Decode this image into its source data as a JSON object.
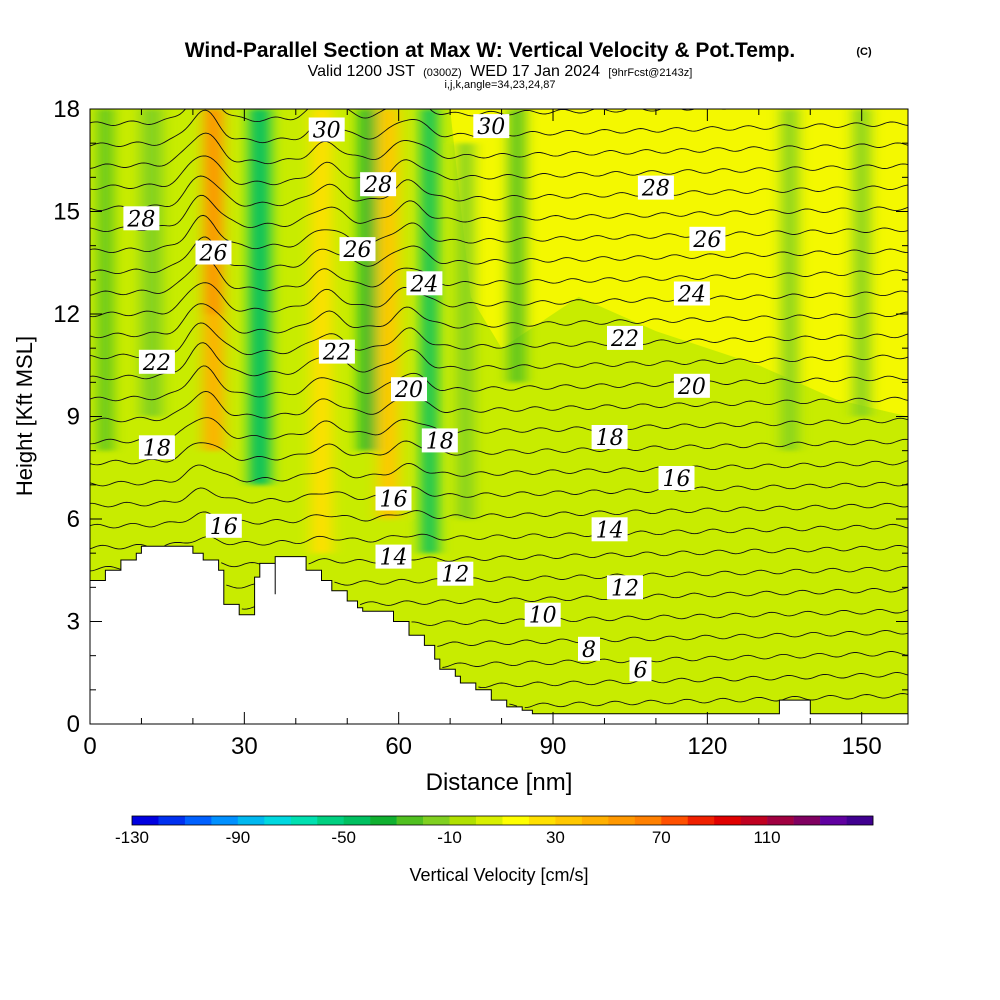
{
  "chart_data": {
    "type": "heatmap",
    "title": "Wind-Parallel Section at Max W: Vertical Velocity & Pot.Temp.",
    "title_mark": "(C)",
    "subtitle": {
      "main_a": "Valid 1200 JST",
      "utc": "(0300Z)",
      "main_b": "WED 17 Jan 2024",
      "fcst": "[9hrFcst@2143z]"
    },
    "subtitle2": "i,j,k,angle=34,23,24,87",
    "xlabel": "Distance [nm]",
    "ylabel": "Height [Kft MSL]",
    "xlim": [
      0,
      159
    ],
    "ylim": [
      0,
      18
    ],
    "xticks": [
      0,
      30,
      60,
      90,
      120,
      150
    ],
    "yticks": [
      0,
      3,
      6,
      9,
      12,
      15,
      18
    ],
    "colorbar": {
      "label": "Vertical Velocity [cm/s]",
      "tick_labels": [
        -130,
        -90,
        -50,
        -10,
        30,
        70,
        110
      ],
      "levels_min": -130,
      "levels_step": 10,
      "colors": [
        "#0000e0",
        "#0030f0",
        "#0060ff",
        "#0090ff",
        "#00b8f0",
        "#00d8e0",
        "#00e0b0",
        "#00d080",
        "#00c060",
        "#10b030",
        "#50c020",
        "#80d020",
        "#b0e000",
        "#d8f000",
        "#ffff00",
        "#ffe000",
        "#ffc800",
        "#ffb000",
        "#ff9800",
        "#ff8000",
        "#ff5000",
        "#f02000",
        "#e00000",
        "#c00020",
        "#a00040",
        "#800060",
        "#6000a0",
        "#400090"
      ]
    },
    "velocity_columns": [
      {
        "x": 3,
        "w": 2.5,
        "value": -30,
        "zmin": 8,
        "zmax": 18
      },
      {
        "x": 12,
        "w": 4,
        "value": -15,
        "zmin": 9,
        "zmax": 18
      },
      {
        "x": 24,
        "w": 4,
        "value": 45,
        "zmin": 8,
        "zmax": 18
      },
      {
        "x": 24,
        "w": 2,
        "value": 60,
        "zmin": 12,
        "zmax": 18
      },
      {
        "x": 33,
        "w": 4,
        "value": -50,
        "zmin": 7,
        "zmax": 18
      },
      {
        "x": 45,
        "w": 4,
        "value": 25,
        "zmin": 5,
        "zmax": 18
      },
      {
        "x": 54,
        "w": 3,
        "value": -35,
        "zmin": 8,
        "zmax": 18
      },
      {
        "x": 58,
        "w": 4,
        "value": 35,
        "zmin": 6,
        "zmax": 18
      },
      {
        "x": 66,
        "w": 3,
        "value": -45,
        "zmin": 5,
        "zmax": 18
      },
      {
        "x": 73,
        "w": 3,
        "value": -15,
        "zmin": 6,
        "zmax": 17
      },
      {
        "x": 83,
        "w": 3,
        "value": -25,
        "zmin": 10,
        "zmax": 18
      },
      {
        "x": 136,
        "w": 3,
        "value": -15,
        "zmin": 8,
        "zmax": 18
      },
      {
        "x": 150,
        "w": 3,
        "value": -15,
        "zmin": 9,
        "zmax": 18
      }
    ],
    "terrain": {
      "x": [
        0,
        3,
        3,
        6,
        6,
        9,
        9,
        10,
        10,
        20,
        20,
        22,
        22,
        25,
        25,
        26,
        26,
        29,
        29,
        32,
        32,
        33,
        33,
        36,
        36,
        36,
        36,
        42,
        42,
        45,
        45,
        47,
        47,
        50,
        50,
        52,
        52,
        53,
        53,
        56,
        56,
        59,
        59,
        62,
        62,
        65,
        65,
        67,
        67,
        68,
        68,
        71,
        71,
        72,
        72,
        75,
        75,
        78,
        78,
        81,
        81,
        84,
        84,
        86,
        86,
        89,
        89,
        134,
        134,
        140,
        140,
        159
      ],
      "z": [
        4.2,
        4.2,
        4.5,
        4.5,
        4.8,
        4.8,
        5.0,
        5.0,
        5.2,
        5.2,
        5.0,
        5.0,
        4.8,
        4.8,
        4.5,
        4.5,
        3.5,
        3.5,
        3.2,
        3.2,
        4.3,
        4.3,
        4.7,
        4.7,
        3.8,
        3.8,
        4.9,
        4.9,
        4.5,
        4.5,
        4.2,
        4.2,
        3.9,
        3.9,
        3.6,
        3.6,
        3.4,
        3.4,
        3.3,
        3.3,
        3.3,
        3.3,
        3.0,
        3.0,
        2.6,
        2.6,
        2.3,
        2.3,
        1.9,
        1.9,
        1.6,
        1.6,
        1.4,
        1.4,
        1.2,
        1.2,
        1.0,
        1.0,
        0.7,
        0.7,
        0.5,
        0.5,
        0.4,
        0.4,
        0.3,
        0.3,
        0.3,
        0.3,
        0.7,
        0.7,
        0.3,
        0.3
      ]
    },
    "isentrope_step": 1,
    "isentrope_labels": [
      {
        "value": 30,
        "x": 46,
        "z": 17.4
      },
      {
        "value": 30,
        "x": 78,
        "z": 17.5
      },
      {
        "value": 28,
        "x": 10,
        "z": 14.8
      },
      {
        "value": 28,
        "x": 56,
        "z": 15.8
      },
      {
        "value": 28,
        "x": 110,
        "z": 15.7
      },
      {
        "value": 26,
        "x": 24,
        "z": 13.8
      },
      {
        "value": 26,
        "x": 52,
        "z": 13.9
      },
      {
        "value": 26,
        "x": 120,
        "z": 14.2
      },
      {
        "value": 24,
        "x": 65,
        "z": 12.9
      },
      {
        "value": 24,
        "x": 117,
        "z": 12.6
      },
      {
        "value": 22,
        "x": 13,
        "z": 10.6
      },
      {
        "value": 22,
        "x": 48,
        "z": 10.9
      },
      {
        "value": 22,
        "x": 104,
        "z": 11.3
      },
      {
        "value": 20,
        "x": 62,
        "z": 9.8
      },
      {
        "value": 20,
        "x": 117,
        "z": 9.9
      },
      {
        "value": 18,
        "x": 13,
        "z": 8.1
      },
      {
        "value": 18,
        "x": 68,
        "z": 8.3
      },
      {
        "value": 18,
        "x": 101,
        "z": 8.4
      },
      {
        "value": 16,
        "x": 26,
        "z": 5.8
      },
      {
        "value": 16,
        "x": 59,
        "z": 6.6
      },
      {
        "value": 16,
        "x": 114,
        "z": 7.2
      },
      {
        "value": 14,
        "x": 59,
        "z": 4.9
      },
      {
        "value": 14,
        "x": 101,
        "z": 5.7
      },
      {
        "value": 12,
        "x": 71,
        "z": 4.4
      },
      {
        "value": 12,
        "x": 104,
        "z": 4.0
      },
      {
        "value": 10,
        "x": 88,
        "z": 3.2
      },
      {
        "value": 8,
        "x": 97,
        "z": 2.2
      },
      {
        "value": 6,
        "x": 107,
        "z": 1.6
      }
    ]
  }
}
